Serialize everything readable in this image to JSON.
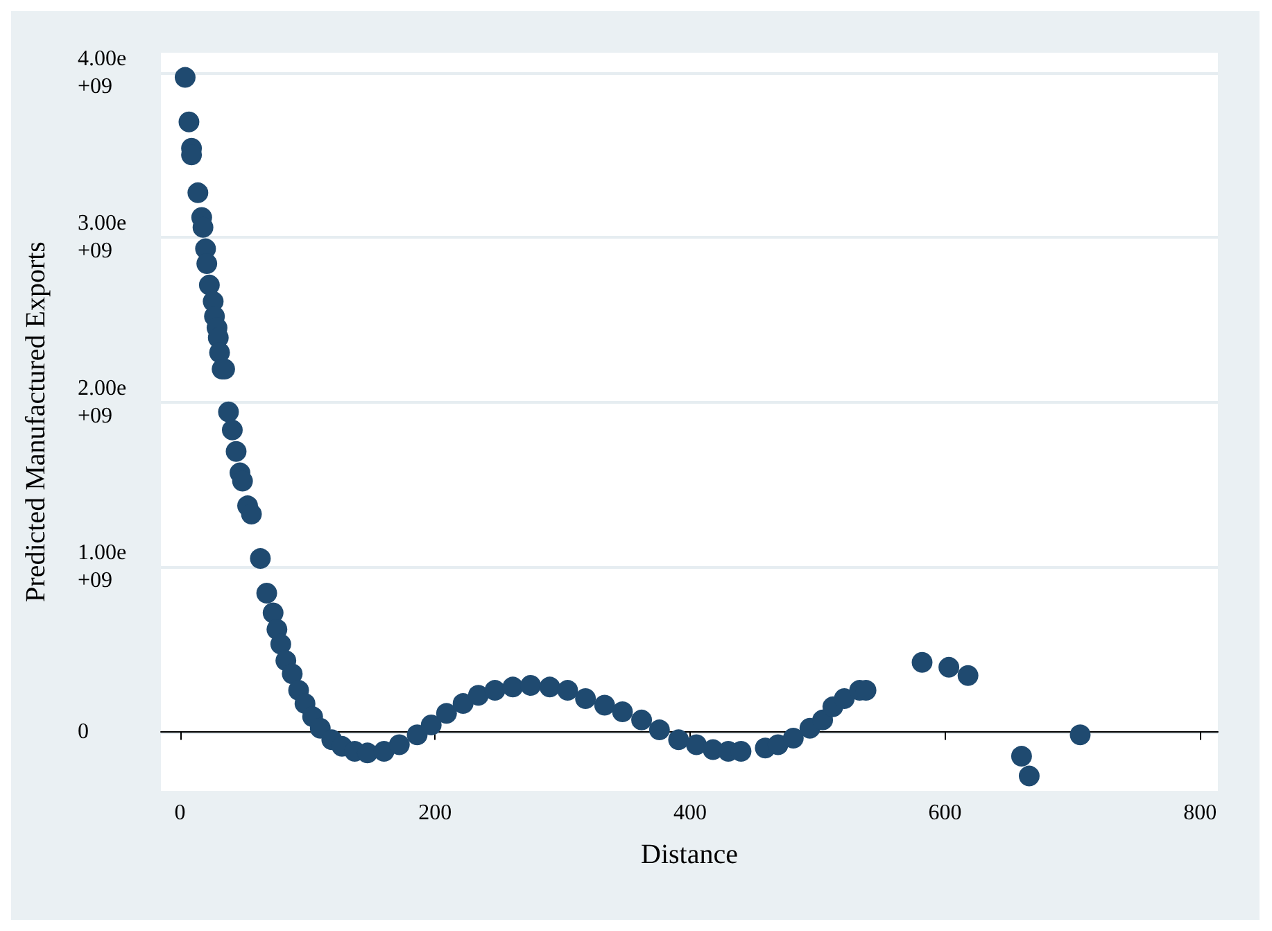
{
  "chart_data": {
    "type": "scatter",
    "xlabel": "Distance",
    "ylabel": "Predicted Manufactured Exports",
    "marker": "circle",
    "grid": "y",
    "xlim": [
      -15,
      814
    ],
    "xticks": [
      0,
      200,
      400,
      600,
      800
    ],
    "ylim": [
      -360000000,
      4120000000
    ],
    "yticks": [
      {
        "value": 0,
        "label": "0"
      },
      {
        "value": 1000000000,
        "label": "1.00e+09"
      },
      {
        "value": 2000000000,
        "label": "2.00e+09"
      },
      {
        "value": 3000000000,
        "label": "3.00e+09"
      },
      {
        "value": 4000000000,
        "label": "4.00e+09"
      }
    ],
    "series": [
      {
        "color": "#1f4a70",
        "x": [
          4,
          7,
          9,
          9,
          14,
          17,
          18,
          20,
          21,
          23,
          26,
          27,
          29,
          30,
          31,
          33,
          35,
          38,
          41,
          44,
          47,
          49,
          53,
          56,
          63,
          68,
          73,
          76,
          79,
          83,
          88,
          93,
          98,
          104,
          110,
          119,
          127,
          137,
          147,
          160,
          172,
          186,
          197,
          209,
          222,
          234,
          247,
          261,
          275,
          290,
          304,
          318,
          333,
          347,
          362,
          376,
          391,
          405,
          418,
          430,
          440,
          459,
          469,
          481,
          494,
          504,
          512,
          521,
          533,
          538,
          582,
          603,
          618,
          660,
          666,
          706
        ],
        "values": [
          3970000000,
          3700000000,
          3540000000,
          3500000000,
          3270000000,
          3120000000,
          3060000000,
          2930000000,
          2840000000,
          2710000000,
          2610000000,
          2520000000,
          2450000000,
          2390000000,
          2300000000,
          2200000000,
          2200000000,
          1940000000,
          1830000000,
          1700000000,
          1570000000,
          1520000000,
          1370000000,
          1320000000,
          1050000000,
          840000000,
          720000000,
          620000000,
          530000000,
          430000000,
          350000000,
          250000000,
          170000000,
          90000000,
          20000000,
          -50000000,
          -90000000,
          -120000000,
          -130000000,
          -120000000,
          -80000000,
          -20000000,
          40000000,
          110000000,
          170000000,
          220000000,
          250000000,
          270000000,
          280000000,
          270000000,
          250000000,
          200000000,
          160000000,
          120000000,
          70000000,
          10000000,
          -50000000,
          -80000000,
          -110000000,
          -120000000,
          -120000000,
          -100000000,
          -80000000,
          -40000000,
          20000000,
          70000000,
          150000000,
          200000000,
          250000000,
          250000000,
          420000000,
          390000000,
          340000000,
          -150000000,
          -270000000,
          -20000000
        ]
      }
    ]
  }
}
